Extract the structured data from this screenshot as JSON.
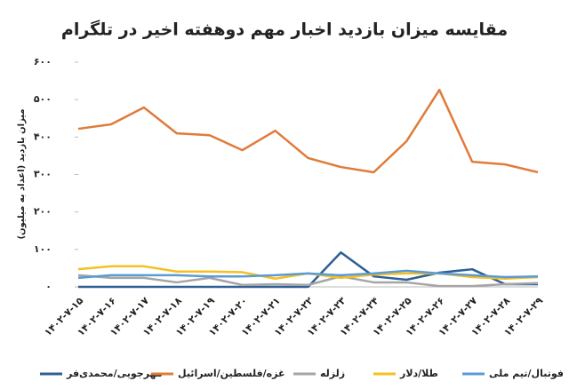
{
  "chart_data": {
    "type": "line",
    "title": "مقایسه میزان بازدید اخبار مهم دوهفته اخیر در تلگرام",
    "y_label": "میزان بازدید (اعداد به میلیون)",
    "categories": [
      "۱۴۰۲-۷-۱۵",
      "۱۴۰۲-۷-۱۶",
      "۱۴۰۲-۷-۱۷",
      "۱۴۰۲-۷-۱۸",
      "۱۴۰۲-۷-۱۹",
      "۱۴۰۲-۷-۲۰",
      "۱۴۰۲-۷-۲۱",
      "۱۴۰۲-۷-۲۲",
      "۱۴۰۲-۷-۲۳",
      "۱۴۰۲-۷-۲۴",
      "۱۴۰۲-۷-۲۵",
      "۱۴۰۲-۷-۲۶",
      "۱۴۰۲-۷-۲۷",
      "۱۴۰۲-۷-۲۸",
      "۱۴۰۲-۷-۲۹"
    ],
    "series": [
      {
        "name": "مهرجویی/محمدی‌فر",
        "color": "#2e5f95",
        "values": [
          0,
          0,
          0,
          0,
          0,
          0,
          0,
          0,
          92,
          28,
          19,
          38,
          47,
          7,
          7
        ]
      },
      {
        "name": "غزه/فلسطین/اسرائیل",
        "color": "#e07b39",
        "values": [
          422,
          434,
          479,
          410,
          405,
          365,
          417,
          344,
          320,
          306,
          389,
          526,
          334,
          327,
          306
        ]
      },
      {
        "name": "زلزله",
        "color": "#a5a5a5",
        "values": [
          31,
          24,
          24,
          12,
          24,
          5,
          7,
          5,
          28,
          12,
          12,
          2,
          2,
          7,
          10
        ]
      },
      {
        "name": "طلا/دلار",
        "color": "#f4c020",
        "values": [
          47,
          55,
          55,
          41,
          41,
          39,
          22,
          36,
          24,
          33,
          36,
          36,
          26,
          22,
          26
        ]
      },
      {
        "name": "فوتبال/تیم ملی",
        "color": "#5b9bd5",
        "values": [
          24,
          31,
          31,
          31,
          28,
          28,
          31,
          36,
          31,
          36,
          43,
          36,
          31,
          26,
          28
        ]
      }
    ],
    "ylim": [
      0,
      600
    ],
    "yticks": [
      {
        "value": 0,
        "label": "۰"
      },
      {
        "value": 100,
        "label": "۱۰۰"
      },
      {
        "value": 200,
        "label": "۲۰۰"
      },
      {
        "value": 300,
        "label": "۳۰۰"
      },
      {
        "value": 400,
        "label": "۴۰۰"
      },
      {
        "value": 500,
        "label": "۵۰۰"
      },
      {
        "value": 600,
        "label": "۶۰۰"
      }
    ],
    "line_width": 2.5
  }
}
